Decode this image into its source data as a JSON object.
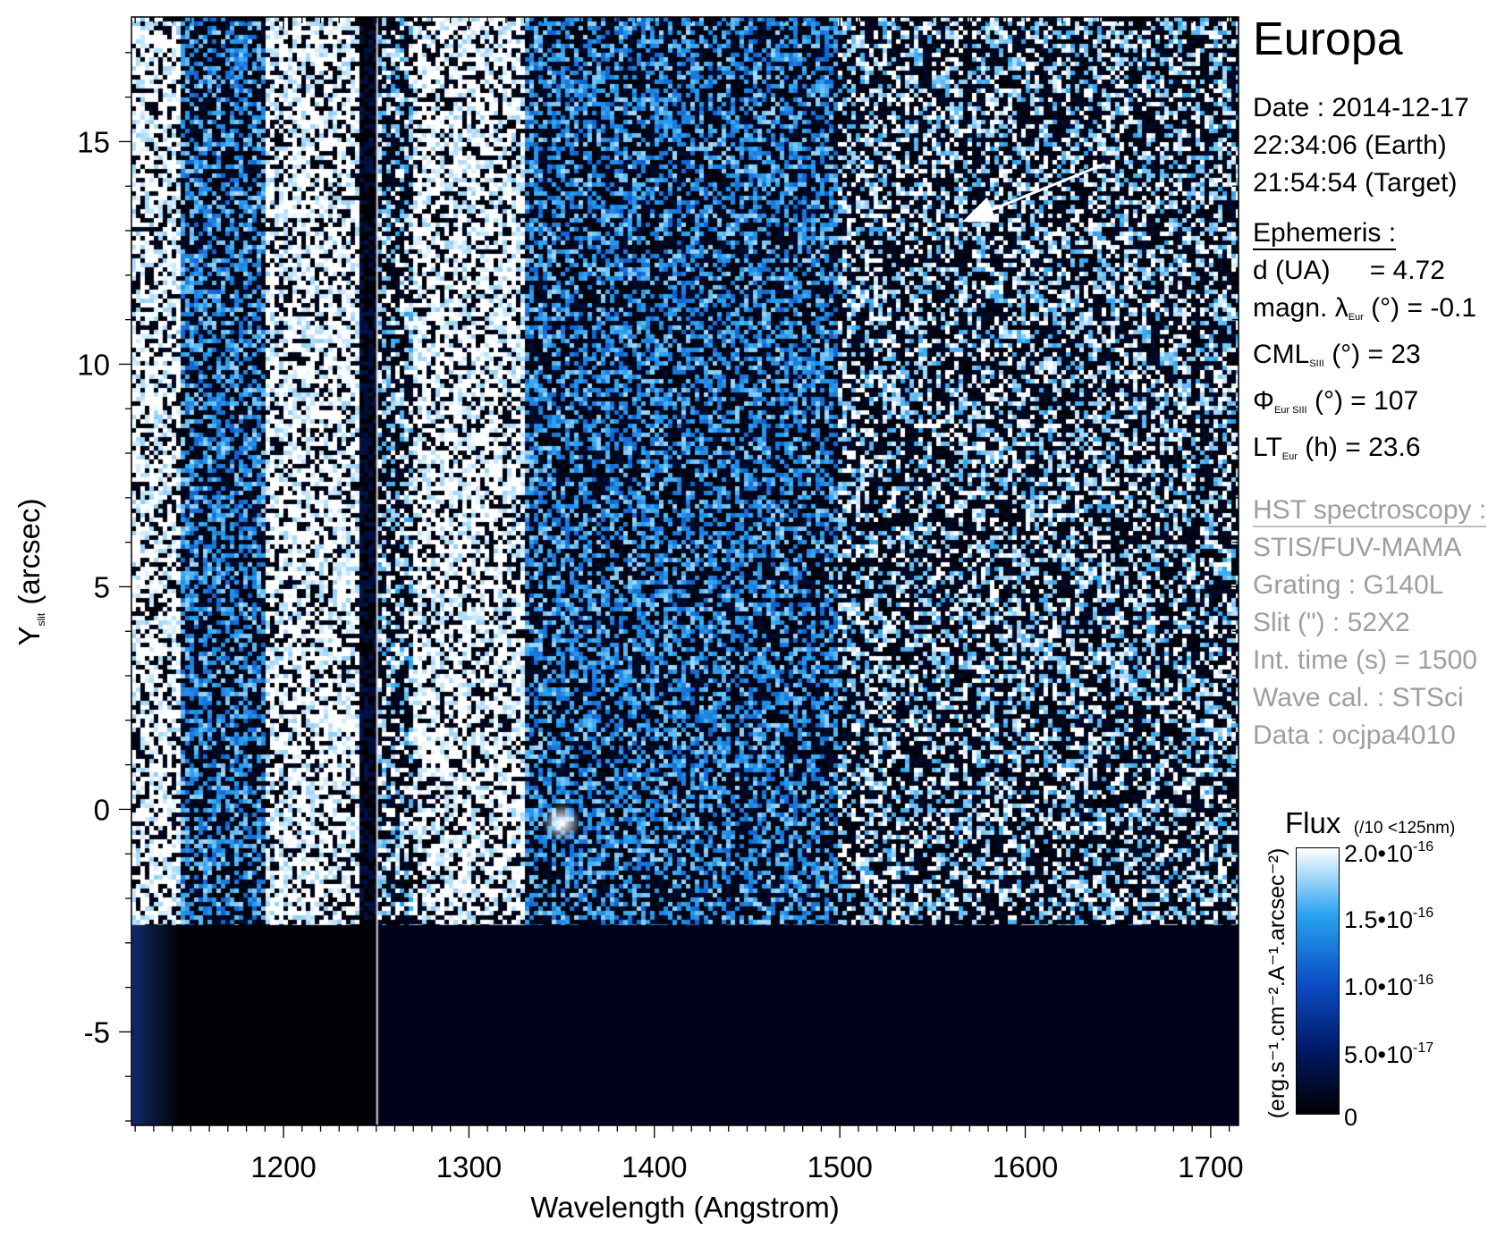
{
  "chart_data": {
    "type": "heatmap",
    "title": "Europa",
    "xlabel": "Wavelength (Angstrom)",
    "ylabel_main": "Y",
    "ylabel_sub": "slit",
    "ylabel_unit": " (arcsec)",
    "xlim": [
      1118,
      1715
    ],
    "ylim": [
      -7.1,
      17.8
    ],
    "x_ticks": [
      1200,
      1300,
      1400,
      1500,
      1600,
      1700
    ],
    "x_tick_labels": [
      "1200",
      "1300",
      "1400",
      "1500",
      "1600",
      "1700"
    ],
    "y_ticks": [
      -5,
      0,
      5,
      10,
      15
    ],
    "y_tick_labels": [
      "-5",
      "0",
      "5",
      "10",
      "15"
    ],
    "x_minor_step": 10,
    "y_minor_step": 1,
    "colormap": [
      "#000000",
      "#001a6a",
      "#0b50c8",
      "#2aa3f0",
      "#ffffff"
    ],
    "bands": [
      {
        "x": [
          1118,
          1145
        ],
        "level": 0.95,
        "desc": "bright"
      },
      {
        "x": [
          1145,
          1190
        ],
        "level": 0.45
      },
      {
        "x": [
          1190,
          1240
        ],
        "level": 0.85
      },
      {
        "x": [
          1240,
          1250
        ],
        "level": 0.05
      },
      {
        "x": [
          1250,
          1270
        ],
        "level": 0.6
      },
      {
        "x": [
          1270,
          1330
        ],
        "level": 0.92
      },
      {
        "x": [
          1330,
          1500
        ],
        "level": 0.45
      },
      {
        "x": [
          1500,
          1715
        ],
        "level": 0.55
      }
    ],
    "detector_edge_y": -2.6,
    "slit_gap_x": 1250,
    "bright_spot": {
      "x": 1350,
      "y": -0.3
    },
    "arrow": {
      "from": [
        1643,
        14.5
      ],
      "to": [
        1566,
        13.2
      ]
    },
    "colorbar": {
      "title": "Flux",
      "note": "(/10 <125nm)",
      "unit": "(erg.s⁻¹.cm⁻².A⁻¹.arcsec⁻²)",
      "range": [
        0,
        2e-16
      ],
      "ticks": [
        {
          "mantissa": "2.0•10",
          "exp": "-16"
        },
        {
          "mantissa": "1.5•10",
          "exp": "-16"
        },
        {
          "mantissa": "1.0•10",
          "exp": "-16"
        },
        {
          "mantissa": "5.0•10",
          "exp": "-17"
        },
        {
          "mantissa": "0",
          "exp": ""
        }
      ]
    }
  },
  "info": {
    "title": "Europa",
    "date_line": "Date : 2014-12-17",
    "earth_time": "22:34:06 (Earth)",
    "target_time": "21:54:54 (Target)",
    "ephemeris_header": "Ephemeris :",
    "d_label": "d (UA)",
    "d_value": "= 4.72",
    "magn_prefix": "magn. λ",
    "magn_sub": "Eur",
    "magn_suffix": " (°)  = -0.1",
    "cml_prefix": "CML",
    "cml_sub": "SIII",
    "cml_suffix": " (°) = 23",
    "phi_prefix": "Φ",
    "phi_sub": "Eur SIII",
    "phi_suffix": " (°) = 107",
    "lt_prefix": "LT",
    "lt_sub": "Eur",
    "lt_suffix": " (h) = 23.6",
    "hst_header": "HST spectroscopy :",
    "instrument": "STIS/FUV-MAMA",
    "grating": "Grating : G140L",
    "slit": "Slit (\") : 52X2",
    "int_time": "Int. time (s) = 1500",
    "wave_cal": "Wave cal. : STSci",
    "data_id": "Data : ocjpa4010"
  }
}
